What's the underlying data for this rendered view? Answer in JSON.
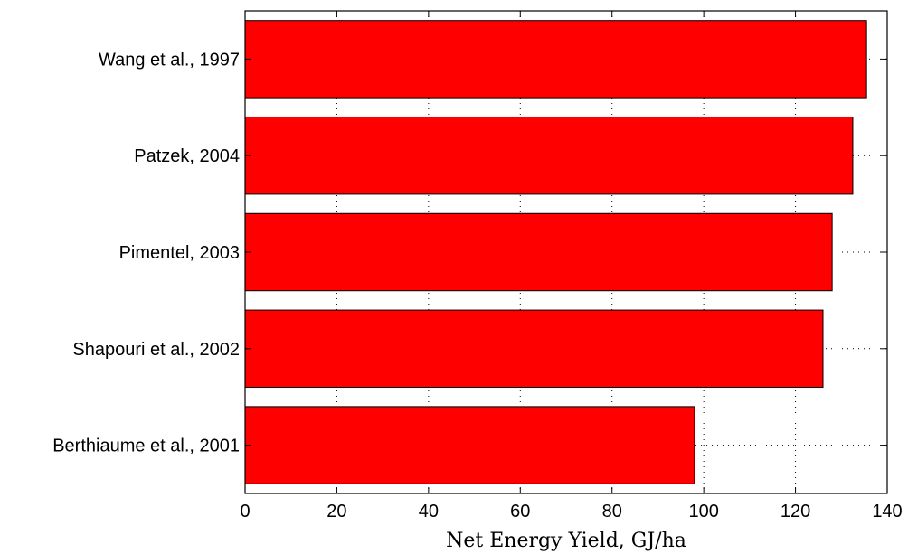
{
  "chart_data": {
    "type": "bar",
    "orientation": "horizontal",
    "categories": [
      "Wang et al., 1997",
      "Patzek, 2004",
      "Pimentel, 2003",
      "Shapouri et al., 2002",
      "Berthiaume et al., 2001"
    ],
    "values": [
      135.5,
      132.5,
      128,
      126,
      98
    ],
    "xlabel": "Net Energy Yield, GJ/ha",
    "ylabel": "",
    "title": "",
    "xlim": [
      0,
      140
    ],
    "xticks": [
      0,
      20,
      40,
      60,
      80,
      100,
      120,
      140
    ],
    "grid": true,
    "bar_color": "#ff0000"
  }
}
